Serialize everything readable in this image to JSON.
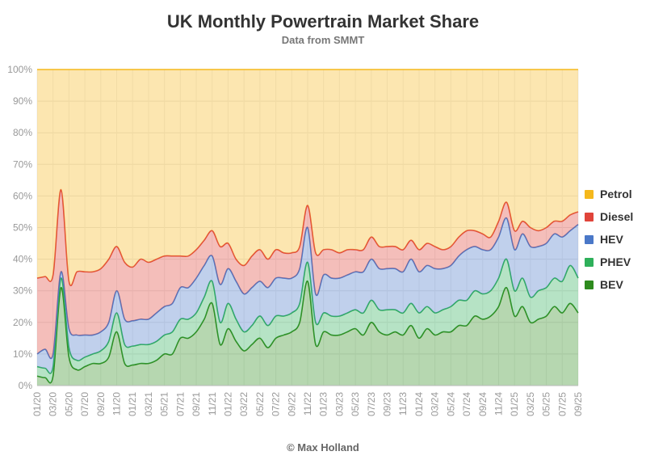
{
  "chart_data": {
    "type": "area",
    "stacked": true,
    "title": "UK Monthly Powertrain Market Share",
    "subtitle": "Data from SMMT",
    "credit": "© Max Holland",
    "ylim": [
      0,
      100
    ],
    "y_ticks": [
      "0%",
      "10%",
      "20%",
      "30%",
      "40%",
      "50%",
      "60%",
      "70%",
      "80%",
      "90%",
      "100%"
    ],
    "x_tick_labels": [
      "01/20",
      "03/20",
      "05/20",
      "07/20",
      "09/20",
      "11/20",
      "01/21",
      "03/21",
      "05/21",
      "07/21",
      "09/21",
      "11/21",
      "01/22",
      "03/22",
      "05/22",
      "07/22",
      "09/22",
      "11/22",
      "01/23",
      "03/23",
      "05/23",
      "07/23",
      "09/23",
      "11/23",
      "01/24",
      "03/24",
      "05/24",
      "07/24",
      "09/24",
      "11/24",
      "01/25",
      "03/25",
      "05/25",
      "07/25",
      "09/25"
    ],
    "grid": true,
    "legend_position": "right",
    "x": [
      "01/20",
      "02/20",
      "03/20",
      "04/20",
      "05/20",
      "06/20",
      "07/20",
      "08/20",
      "09/20",
      "10/20",
      "11/20",
      "12/20",
      "01/21",
      "02/21",
      "03/21",
      "04/21",
      "05/21",
      "06/21",
      "07/21",
      "08/21",
      "09/21",
      "10/21",
      "11/21",
      "12/21",
      "01/22",
      "02/22",
      "03/22",
      "04/22",
      "05/22",
      "06/22",
      "07/22",
      "08/22",
      "09/22",
      "10/22",
      "11/22",
      "12/22",
      "01/23",
      "02/23",
      "03/23",
      "04/23",
      "05/23",
      "06/23",
      "07/23",
      "08/23",
      "09/23",
      "10/23",
      "11/23",
      "12/23",
      "01/24",
      "02/24",
      "03/24",
      "04/24",
      "05/24",
      "06/24",
      "07/24",
      "08/24",
      "09/24",
      "10/24",
      "11/24",
      "12/24",
      "01/25",
      "02/25",
      "03/25",
      "04/25",
      "05/25",
      "06/25",
      "07/25",
      "08/25",
      "09/25"
    ],
    "series": [
      {
        "name": "BEV",
        "color": "#2e8b1e",
        "values": [
          3,
          2.5,
          3,
          31,
          9,
          5,
          6,
          7,
          7,
          9,
          17,
          7,
          6.5,
          7,
          7,
          8,
          10,
          10,
          15,
          15,
          17,
          21,
          26,
          13,
          18,
          14,
          11,
          13,
          15,
          12,
          15,
          16,
          17,
          20,
          33,
          13,
          17,
          16,
          16,
          17,
          18,
          16,
          20,
          17,
          16,
          17,
          16,
          19,
          15,
          18,
          16,
          17,
          17,
          19,
          19,
          22,
          21,
          22,
          25,
          31,
          22,
          25,
          20,
          21,
          22,
          25,
          23,
          26,
          23
        ]
      },
      {
        "name": "PHEV",
        "color": "#2eb05a",
        "values": [
          3,
          3,
          3,
          3,
          3,
          3,
          3,
          3,
          4,
          5,
          6,
          6,
          6,
          6,
          6,
          6,
          6,
          7,
          6,
          6,
          6,
          7,
          7,
          7,
          8,
          7,
          6,
          6,
          7,
          7,
          7,
          6,
          6,
          6,
          6,
          7,
          6,
          6,
          6,
          6,
          6,
          7,
          7,
          7,
          8,
          7,
          7,
          7,
          8,
          7,
          7,
          7,
          8,
          8,
          8,
          8,
          8,
          8,
          9,
          9,
          8,
          9,
          8,
          9,
          9,
          9,
          10,
          12,
          11
        ]
      },
      {
        "name": "HEV",
        "color": "#4a78c8",
        "values": [
          4,
          6,
          4,
          2,
          6,
          8,
          7,
          6,
          6,
          6,
          7,
          8,
          8,
          8,
          8,
          9,
          9,
          9,
          10,
          10,
          11,
          10,
          8,
          12,
          11,
          12,
          12,
          12,
          11,
          12,
          12,
          12,
          11,
          11,
          11,
          9,
          12,
          12,
          12,
          12,
          12,
          13,
          13,
          13,
          13,
          13,
          13,
          14,
          13,
          13,
          14,
          13,
          13,
          14,
          16,
          14,
          14,
          13,
          13,
          13,
          13,
          14,
          16,
          14,
          14,
          14,
          14,
          11,
          17
        ]
      },
      {
        "name": "Diesel",
        "color": "#e0443a",
        "values": [
          24,
          23,
          25,
          26,
          15,
          20,
          20,
          20,
          20,
          20,
          14,
          18,
          17,
          19,
          18,
          17,
          16,
          15,
          10,
          10,
          9,
          8,
          8,
          12,
          8,
          7,
          9,
          10,
          10,
          9,
          9,
          8,
          8,
          7,
          7,
          13,
          8,
          9,
          8,
          8,
          7,
          7,
          7,
          7,
          7,
          7,
          7,
          6,
          7,
          7,
          7,
          6,
          6,
          6,
          6,
          5,
          5,
          4,
          5,
          5,
          6,
          4,
          6,
          5,
          5,
          4,
          5,
          5,
          4
        ]
      },
      {
        "name": "Petrol",
        "color": "#f5b81c",
        "values": [
          66,
          65.5,
          65,
          38,
          67,
          64,
          64,
          64,
          63,
          60,
          56,
          61,
          62.5,
          60,
          61,
          60,
          59,
          59,
          59,
          59,
          57,
          54,
          51,
          56,
          55,
          60,
          62,
          59,
          57,
          60,
          57,
          58,
          58,
          56,
          43,
          58,
          57,
          57,
          58,
          57,
          57,
          57,
          53,
          56,
          56,
          56,
          57,
          54,
          57,
          55,
          56,
          57,
          56,
          53,
          51,
          51,
          52,
          53,
          48,
          42,
          51,
          48,
          50,
          51,
          50,
          48,
          48,
          46,
          45
        ]
      }
    ]
  }
}
